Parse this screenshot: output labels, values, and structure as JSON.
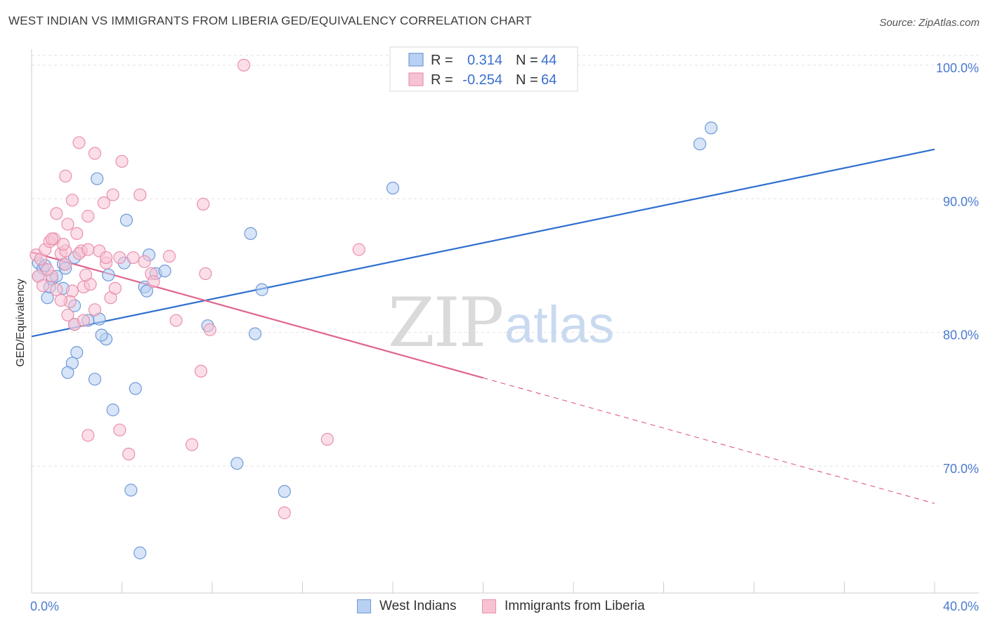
{
  "title": "WEST INDIAN VS IMMIGRANTS FROM LIBERIA GED/EQUIVALENCY CORRELATION CHART",
  "source": "Source: ZipAtlas.com",
  "watermark": {
    "zip": "ZIP",
    "atlas": "atlas"
  },
  "legend": {
    "rows": [
      {
        "r_label": "R =",
        "r_value": "0.314",
        "n_label": "N =",
        "n_value": "44"
      },
      {
        "r_label": "R =",
        "r_value": "-0.254",
        "n_label": "N =",
        "n_value": "64"
      }
    ]
  },
  "bottom_legend": [
    "West Indians",
    "Immigrants from Liberia"
  ],
  "colors": {
    "blue_fill": "#b8d0f2",
    "blue_stroke": "#6f9ad8",
    "blue_line": "#2f6fcf",
    "pink_fill": "#f7c3d3",
    "pink_stroke": "#e991ad",
    "pink_line": "#e0668f",
    "tick_text": "#4a7bd0",
    "grid": "#e2e2e2"
  },
  "chart_data": {
    "type": "scatter",
    "title": "WEST INDIAN VS IMMIGRANTS FROM LIBERIA GED/EQUIVALENCY CORRELATION CHART",
    "xlabel": "",
    "ylabel": "GED/Equivalency",
    "xlim": [
      0,
      40
    ],
    "ylim": [
      60.5,
      101.2
    ],
    "x_tick_labels": [
      "0.0%",
      "40.0%"
    ],
    "y_ticks": [
      70,
      80,
      90,
      100
    ],
    "y_tick_labels": [
      "70.0%",
      "80.0%",
      "90.0%",
      "100.0%"
    ],
    "series": [
      {
        "name": "West Indians",
        "r": 0.314,
        "n": 44,
        "trend": {
          "x": [
            0,
            40
          ],
          "y": [
            79.7,
            93.7
          ],
          "dashed_from": null
        },
        "points": [
          [
            0.3,
            85.2
          ],
          [
            0.5,
            84.8
          ],
          [
            0.3,
            84.2
          ],
          [
            0.6,
            85.0
          ],
          [
            0.9,
            84.0
          ],
          [
            0.7,
            82.6
          ],
          [
            0.8,
            83.4
          ],
          [
            1.1,
            84.2
          ],
          [
            1.4,
            85.1
          ],
          [
            1.5,
            84.8
          ],
          [
            1.9,
            85.6
          ],
          [
            1.4,
            83.3
          ],
          [
            1.9,
            82.0
          ],
          [
            1.9,
            80.6
          ],
          [
            2.5,
            80.9
          ],
          [
            3.0,
            81.0
          ],
          [
            2.9,
            91.5
          ],
          [
            3.4,
            84.3
          ],
          [
            3.3,
            79.5
          ],
          [
            3.1,
            79.8
          ],
          [
            4.1,
            85.2
          ],
          [
            4.2,
            88.4
          ],
          [
            2.0,
            78.5
          ],
          [
            1.8,
            77.7
          ],
          [
            1.6,
            77.0
          ],
          [
            2.8,
            76.5
          ],
          [
            4.6,
            75.8
          ],
          [
            3.6,
            74.2
          ],
          [
            5.2,
            85.8
          ],
          [
            5.5,
            84.4
          ],
          [
            5.0,
            83.4
          ],
          [
            5.1,
            83.1
          ],
          [
            5.9,
            84.6
          ],
          [
            7.8,
            80.5
          ],
          [
            9.7,
            87.4
          ],
          [
            10.2,
            83.2
          ],
          [
            9.9,
            79.9
          ],
          [
            16.0,
            90.8
          ],
          [
            29.6,
            94.1
          ],
          [
            30.1,
            95.3
          ],
          [
            9.1,
            70.2
          ],
          [
            11.2,
            68.1
          ],
          [
            4.4,
            68.2
          ],
          [
            4.8,
            63.5
          ]
        ]
      },
      {
        "name": "Immigrants from Liberia",
        "r": -0.254,
        "n": 64,
        "trend": {
          "x": [
            0,
            40
          ],
          "y": [
            86.0,
            67.2
          ],
          "dashed_from": 20
        },
        "points": [
          [
            0.2,
            85.8
          ],
          [
            0.4,
            85.5
          ],
          [
            0.3,
            84.2
          ],
          [
            0.5,
            83.5
          ],
          [
            0.6,
            86.2
          ],
          [
            0.8,
            86.8
          ],
          [
            1.0,
            87.0
          ],
          [
            0.9,
            84.2
          ],
          [
            1.1,
            83.2
          ],
          [
            1.3,
            85.9
          ],
          [
            1.5,
            85.1
          ],
          [
            1.5,
            86.1
          ],
          [
            1.1,
            88.9
          ],
          [
            1.4,
            86.6
          ],
          [
            1.6,
            88.1
          ],
          [
            2.0,
            87.4
          ],
          [
            2.2,
            86.1
          ],
          [
            1.8,
            83.1
          ],
          [
            1.7,
            82.3
          ],
          [
            1.6,
            81.3
          ],
          [
            1.9,
            80.6
          ],
          [
            2.3,
            80.9
          ],
          [
            2.3,
            83.4
          ],
          [
            2.6,
            83.6
          ],
          [
            2.8,
            81.7
          ],
          [
            2.1,
            85.9
          ],
          [
            2.5,
            86.2
          ],
          [
            3.0,
            86.1
          ],
          [
            3.3,
            85.2
          ],
          [
            3.5,
            82.6
          ],
          [
            3.7,
            83.3
          ],
          [
            3.9,
            85.6
          ],
          [
            3.2,
            89.7
          ],
          [
            3.6,
            90.3
          ],
          [
            2.5,
            88.7
          ],
          [
            1.5,
            91.7
          ],
          [
            2.1,
            94.2
          ],
          [
            2.8,
            93.4
          ],
          [
            4.0,
            92.8
          ],
          [
            1.8,
            89.9
          ],
          [
            4.8,
            90.3
          ],
          [
            5.0,
            85.3
          ],
          [
            5.3,
            84.4
          ],
          [
            5.4,
            83.8
          ],
          [
            6.1,
            85.7
          ],
          [
            7.7,
            84.4
          ],
          [
            7.6,
            89.6
          ],
          [
            6.4,
            80.9
          ],
          [
            7.9,
            80.2
          ],
          [
            7.5,
            77.1
          ],
          [
            2.5,
            72.3
          ],
          [
            3.9,
            72.7
          ],
          [
            4.3,
            70.9
          ],
          [
            7.1,
            71.6
          ],
          [
            14.5,
            86.2
          ],
          [
            13.1,
            72.0
          ],
          [
            11.2,
            66.5
          ],
          [
            9.4,
            100.0
          ],
          [
            0.7,
            84.7
          ],
          [
            1.3,
            82.4
          ],
          [
            2.4,
            84.3
          ],
          [
            4.5,
            85.6
          ],
          [
            0.9,
            87.0
          ],
          [
            3.3,
            85.6
          ]
        ]
      }
    ]
  }
}
